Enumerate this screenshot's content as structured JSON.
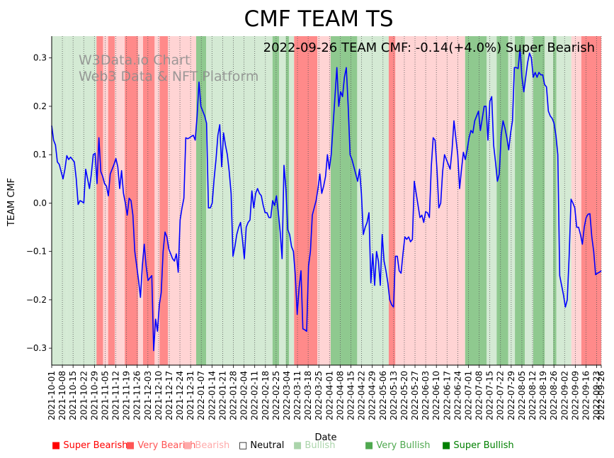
{
  "chart_data": {
    "type": "line",
    "title": "CMF TEAM TS",
    "xlabel": "Date",
    "ylabel": "TEAM CMF",
    "annotation": "2022-09-26 TEAM CMF: -0.14(+4.0%) Super Bearish",
    "watermark": [
      "W3Data.io Chart",
      "Web3 Data & NFT Platform"
    ],
    "ylim": [
      -0.335,
      0.345
    ],
    "yticks": [
      -0.3,
      -0.2,
      -0.1,
      0.0,
      0.1,
      0.2,
      0.3
    ],
    "ytick_labels": [
      "−0.3",
      "−0.2",
      "−0.1",
      "0.0",
      "0.1",
      "0.2",
      "0.3"
    ],
    "x_start": "2021-10-01",
    "x_end": "2022-09-26",
    "xticks": [
      "2021-10-01",
      "2021-10-08",
      "2021-10-15",
      "2021-10-22",
      "2021-10-29",
      "2021-11-05",
      "2021-11-12",
      "2021-11-19",
      "2021-11-26",
      "2021-12-03",
      "2021-12-10",
      "2021-12-17",
      "2021-12-24",
      "2021-12-31",
      "2022-01-07",
      "2022-01-14",
      "2022-01-21",
      "2022-01-28",
      "2022-02-04",
      "2022-02-11",
      "2022-02-18",
      "2022-02-25",
      "2022-03-04",
      "2022-03-11",
      "2022-03-18",
      "2022-03-25",
      "2022-04-01",
      "2022-04-08",
      "2022-04-15",
      "2022-04-22",
      "2022-04-29",
      "2022-05-06",
      "2022-05-13",
      "2022-05-20",
      "2022-05-27",
      "2022-06-03",
      "2022-06-10",
      "2022-06-17",
      "2022-06-24",
      "2022-07-01",
      "2022-07-08",
      "2022-07-15",
      "2022-07-22",
      "2022-07-29",
      "2022-08-05",
      "2022-08-12",
      "2022-08-19",
      "2022-08-26",
      "2022-09-02",
      "2022-09-09",
      "2022-09-16",
      "2022-09-23",
      "2022-09-26"
    ],
    "series": [
      {
        "name": "TEAM CMF",
        "color": "#0000ff",
        "values": [
          0.16,
          0.13,
          0.12,
          0.085,
          0.08,
          0.065,
          0.05,
          0.07,
          0.098,
          0.09,
          0.095,
          0.09,
          0.085,
          0.05,
          -0.003,
          0.005,
          0.003,
          0.0,
          0.07,
          0.05,
          0.03,
          0.06,
          0.1,
          0.103,
          0.04,
          0.135,
          0.065,
          0.055,
          0.04,
          0.035,
          0.015,
          0.06,
          0.07,
          0.08,
          0.092,
          0.075,
          0.03,
          0.067,
          0.02,
          0.0,
          -0.025,
          0.01,
          0.005,
          -0.025,
          -0.1,
          -0.13,
          -0.16,
          -0.195,
          -0.13,
          -0.085,
          -0.13,
          -0.16,
          -0.155,
          -0.15,
          -0.305,
          -0.24,
          -0.265,
          -0.21,
          -0.185,
          -0.1,
          -0.06,
          -0.07,
          -0.095,
          -0.105,
          -0.115,
          -0.12,
          -0.105,
          -0.143,
          -0.035,
          -0.01,
          0.01,
          0.135,
          0.133,
          0.135,
          0.138,
          0.14,
          0.13,
          0.18,
          0.25,
          0.2,
          0.19,
          0.18,
          0.165,
          -0.01,
          -0.01,
          0.0,
          0.05,
          0.09,
          0.14,
          0.162,
          0.075,
          0.145,
          0.12,
          0.1,
          0.065,
          0.02,
          -0.11,
          -0.09,
          -0.065,
          -0.05,
          -0.04,
          -0.075,
          -0.115,
          -0.05,
          -0.04,
          -0.035,
          0.025,
          -0.01,
          0.02,
          0.03,
          0.02,
          0.015,
          -0.005,
          -0.02,
          -0.02,
          -0.03,
          -0.03,
          0.005,
          -0.005,
          0.015,
          -0.02,
          -0.06,
          -0.115,
          0.078,
          0.03,
          -0.055,
          -0.065,
          -0.09,
          -0.1,
          -0.15,
          -0.23,
          -0.175,
          -0.14,
          -0.26,
          -0.262,
          -0.265,
          -0.13,
          -0.1,
          -0.025,
          -0.01,
          0.005,
          0.03,
          0.06,
          0.02,
          0.035,
          0.055,
          0.1,
          0.07,
          0.1,
          0.16,
          0.22,
          0.28,
          0.2,
          0.23,
          0.22,
          0.26,
          0.28,
          0.2,
          0.1,
          0.09,
          0.075,
          0.06,
          0.045,
          0.07,
          0.02,
          -0.065,
          -0.05,
          -0.04,
          -0.02,
          -0.165,
          -0.105,
          -0.17,
          -0.1,
          -0.12,
          -0.17,
          -0.065,
          -0.12,
          -0.14,
          -0.165,
          -0.2,
          -0.21,
          -0.215,
          -0.11,
          -0.11,
          -0.14,
          -0.145,
          -0.105,
          -0.07,
          -0.075,
          -0.07,
          -0.08,
          -0.075,
          0.045,
          0.02,
          -0.005,
          -0.03,
          -0.025,
          -0.04,
          -0.018,
          -0.02,
          -0.03,
          0.075,
          0.135,
          0.13,
          0.07,
          -0.01,
          0.0,
          0.065,
          0.1,
          0.09,
          0.08,
          0.07,
          0.11,
          0.17,
          0.135,
          0.1,
          0.03,
          0.07,
          0.105,
          0.09,
          0.11,
          0.135,
          0.15,
          0.145,
          0.17,
          0.18,
          0.19,
          0.15,
          0.175,
          0.2,
          0.2,
          0.13,
          0.21,
          0.22,
          0.12,
          0.085,
          0.045,
          0.06,
          0.14,
          0.17,
          0.155,
          0.135,
          0.11,
          0.145,
          0.17,
          0.28,
          0.28,
          0.278,
          0.32,
          0.26,
          0.23,
          0.26,
          0.29,
          0.31,
          0.3,
          0.26,
          0.27,
          0.26,
          0.27,
          0.265,
          0.265,
          0.245,
          0.24,
          0.19,
          0.18,
          0.175,
          0.165,
          0.14,
          0.1,
          -0.15,
          -0.17,
          -0.19,
          -0.215,
          -0.2,
          -0.11,
          0.008,
          0.0,
          -0.01,
          -0.05,
          -0.05,
          -0.065,
          -0.085,
          -0.05,
          -0.03,
          -0.023,
          -0.022,
          -0.07,
          -0.1,
          -0.148,
          -0.145,
          -0.143,
          -0.14
        ]
      }
    ],
    "sentiment_bands": [
      {
        "from": 0,
        "to": 9,
        "level": "Bullish"
      },
      {
        "from": 9,
        "to": 18,
        "level": "Bullish"
      },
      {
        "from": 18,
        "to": 27,
        "level": "Bullish"
      },
      {
        "from": 27,
        "to": 31,
        "level": "Very Bearish"
      },
      {
        "from": 31,
        "to": 34,
        "level": "Bearish"
      },
      {
        "from": 34,
        "to": 38,
        "level": "Very Bearish"
      },
      {
        "from": 38,
        "to": 44,
        "level": "Bearish"
      },
      {
        "from": 44,
        "to": 52,
        "level": "Very Bearish"
      },
      {
        "from": 52,
        "to": 55,
        "level": "Bearish"
      },
      {
        "from": 55,
        "to": 62,
        "level": "Very Bearish"
      },
      {
        "from": 62,
        "to": 65,
        "level": "Bearish"
      },
      {
        "from": 65,
        "to": 70,
        "level": "Very Bearish"
      },
      {
        "from": 70,
        "to": 84,
        "level": "Bearish"
      },
      {
        "from": 84,
        "to": 87,
        "level": "Bearish"
      },
      {
        "from": 87,
        "to": 93,
        "level": "Very Bullish"
      },
      {
        "from": 93,
        "to": 133,
        "level": "Bullish"
      },
      {
        "from": 133,
        "to": 137,
        "level": "Very Bullish"
      },
      {
        "from": 137,
        "to": 141,
        "level": "Bullish"
      },
      {
        "from": 141,
        "to": 143,
        "level": "Very Bullish"
      },
      {
        "from": 143,
        "to": 146,
        "level": "Bullish"
      },
      {
        "from": 146,
        "to": 160,
        "level": "Very Bearish"
      },
      {
        "from": 160,
        "to": 168,
        "level": "Bearish"
      },
      {
        "from": 168,
        "to": 174,
        "level": "Very Bullish"
      },
      {
        "from": 174,
        "to": 184,
        "level": "Very Bullish"
      },
      {
        "from": 184,
        "to": 203,
        "level": "Bullish"
      },
      {
        "from": 203,
        "to": 207,
        "level": "Very Bearish"
      },
      {
        "from": 207,
        "to": 212,
        "level": "Bearish"
      },
      {
        "from": 212,
        "to": 249,
        "level": "Bearish"
      },
      {
        "from": 249,
        "to": 257,
        "level": "Very Bullish"
      },
      {
        "from": 257,
        "to": 262,
        "level": "Very Bullish"
      },
      {
        "from": 262,
        "to": 268,
        "level": "Bullish"
      },
      {
        "from": 268,
        "to": 275,
        "level": "Very Bullish"
      },
      {
        "from": 275,
        "to": 279,
        "level": "Bullish"
      },
      {
        "from": 279,
        "to": 285,
        "level": "Very Bullish"
      },
      {
        "from": 285,
        "to": 290,
        "level": "Bullish"
      },
      {
        "from": 290,
        "to": 297,
        "level": "Very Bullish"
      },
      {
        "from": 297,
        "to": 302,
        "level": "Bullish"
      },
      {
        "from": 302,
        "to": 304,
        "level": "Very Bullish"
      },
      {
        "from": 304,
        "to": 313,
        "level": "Bullish"
      },
      {
        "from": 313,
        "to": 319,
        "level": "Bearish"
      },
      {
        "from": 319,
        "to": 331,
        "level": "Very Bearish"
      }
    ],
    "legend": [
      {
        "label": "Super Bearish",
        "color": "#ff0000",
        "symbol": "■"
      },
      {
        "label": "Very Bearish",
        "color": "#ff5555",
        "symbol": "■"
      },
      {
        "label": "Bearish",
        "color": "#ffaaaa",
        "symbol": "■"
      },
      {
        "label": "Neutral",
        "color": "#000000",
        "symbol": "□"
      },
      {
        "label": "Bullish",
        "color": "#aad4aa",
        "symbol": "■"
      },
      {
        "label": "Very Bullish",
        "color": "#4fa84f",
        "symbol": "■"
      },
      {
        "label": "Super Bullish",
        "color": "#008000",
        "symbol": "■"
      }
    ],
    "band_colors": {
      "Super Bearish": "#ff6b6b",
      "Very Bearish": "#ff8a8a",
      "Bearish": "#ffd4d4",
      "Neutral": "#ffffff",
      "Bullish": "#d4ead4",
      "Very Bullish": "#8fc98f",
      "Super Bullish": "#5fb05f"
    }
  }
}
